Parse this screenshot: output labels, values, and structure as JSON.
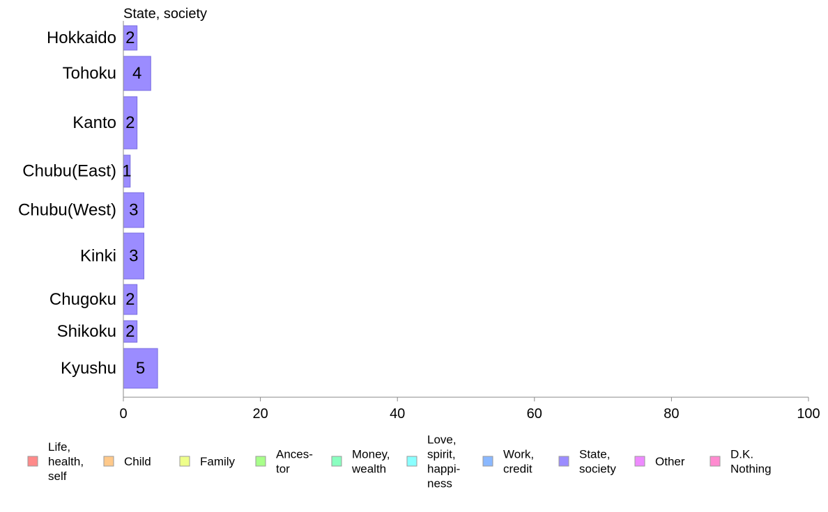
{
  "chart_data": {
    "type": "bar",
    "orientation": "horizontal",
    "series_title": "State, society",
    "categories": [
      "Hokkaido",
      "Tohoku",
      "Kanto",
      "Chubu(East)",
      "Chubu(West)",
      "Kinki",
      "Chugoku",
      "Shikoku",
      "Kyushu"
    ],
    "values": [
      2,
      4,
      2,
      1,
      3,
      3,
      2,
      2,
      5
    ],
    "xlim": [
      0,
      100
    ],
    "x_ticks": [
      "0",
      "20",
      "40",
      "60",
      "80",
      "100"
    ],
    "bar_color": "#9b8cff",
    "legend": {
      "placement": "bottom",
      "items": [
        {
          "label_lines": [
            "Life,",
            "health,",
            "self"
          ],
          "color": "#ff8a8a"
        },
        {
          "label_lines": [
            "Child"
          ],
          "color": "#ffc98a"
        },
        {
          "label_lines": [
            "Family"
          ],
          "color": "#eeff8a"
        },
        {
          "label_lines": [
            "Ances-",
            "tor"
          ],
          "color": "#a8ff8a"
        },
        {
          "label_lines": [
            "Money,",
            "wealth"
          ],
          "color": "#8affc0"
        },
        {
          "label_lines": [
            "Love,",
            "spirit,",
            "happi-",
            "ness"
          ],
          "color": "#8affff"
        },
        {
          "label_lines": [
            "Work,",
            "credit"
          ],
          "color": "#8ab8ff"
        },
        {
          "label_lines": [
            "State,",
            "society"
          ],
          "color": "#9b8cff"
        },
        {
          "label_lines": [
            "Other"
          ],
          "color": "#ee8aff"
        },
        {
          "label_lines": [
            "D.K.",
            "Nothing"
          ],
          "color": "#ff8ad0"
        }
      ]
    }
  }
}
